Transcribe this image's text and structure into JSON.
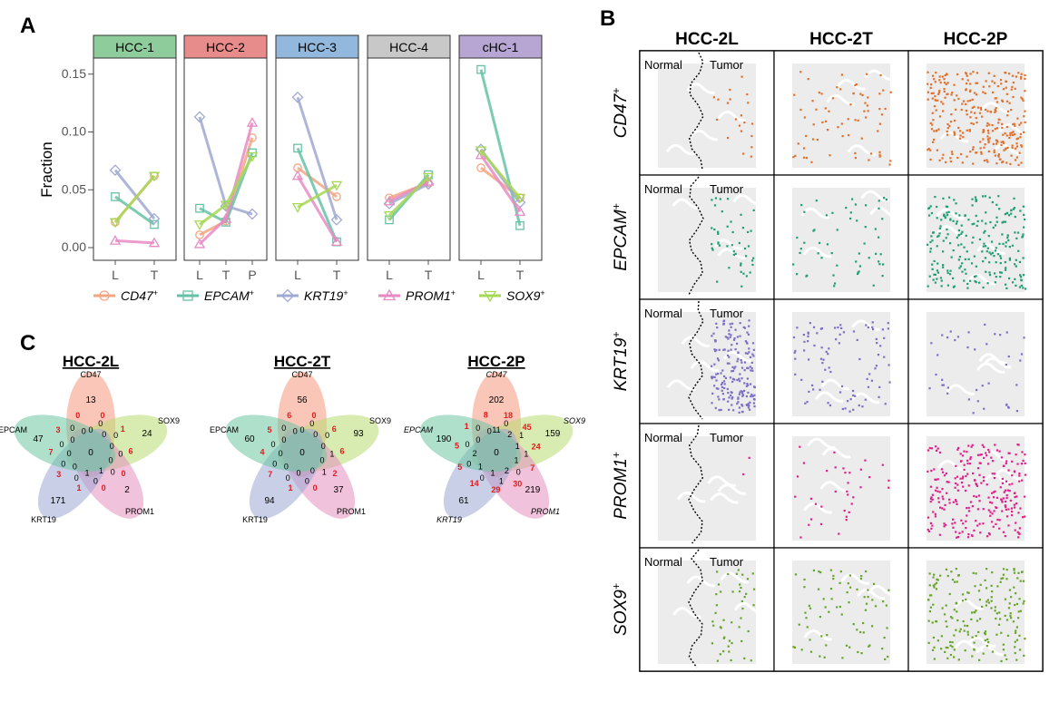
{
  "panel_a": {
    "letter": "A",
    "ylabel": "Fraction",
    "y_ticks": [
      "0.00",
      "0.05",
      "0.10",
      "0.15"
    ],
    "y_tick_values": [
      0,
      0.05,
      0.1,
      0.15
    ],
    "facets": [
      {
        "label": "HCC-1",
        "color": "#8fcc9c",
        "x": [
          "L",
          "T"
        ]
      },
      {
        "label": "HCC-2",
        "color": "#e88b8b",
        "x": [
          "L",
          "T",
          "P"
        ]
      },
      {
        "label": "HCC-3",
        "color": "#92b8de",
        "x": [
          "L",
          "T"
        ]
      },
      {
        "label": "HCC-4",
        "color": "#c8c8c8",
        "x": [
          "L",
          "T"
        ]
      },
      {
        "label": "cHC-1",
        "color": "#b7a6d4",
        "x": [
          "L",
          "T"
        ]
      }
    ],
    "legend": [
      {
        "name": "CD47",
        "sup": "+",
        "color": "#f4a582",
        "marker": "circle"
      },
      {
        "name": "EPCAM",
        "sup": "+",
        "color": "#66c2a5",
        "marker": "square"
      },
      {
        "name": "KRT19",
        "sup": "+",
        "color": "#9fa9d2",
        "marker": "diamond"
      },
      {
        "name": "PROM1",
        "sup": "+",
        "color": "#e78ac3",
        "marker": "triangle"
      },
      {
        "name": "SOX9",
        "sup": "+",
        "color": "#a6d854",
        "marker": "triangle-down"
      }
    ]
  },
  "chart_data": {
    "type": "line",
    "title": "",
    "xlabel": "",
    "ylabel": "Fraction",
    "ylim": [
      0,
      0.16
    ],
    "facets": [
      {
        "name": "HCC-1",
        "x": [
          "L",
          "T"
        ],
        "series": [
          {
            "name": "CD47+",
            "values": [
              0.022,
              0.062
            ]
          },
          {
            "name": "EPCAM+",
            "values": [
              0.044,
              0.02
            ]
          },
          {
            "name": "KRT19+",
            "values": [
              0.067,
              0.025
            ]
          },
          {
            "name": "PROM1+",
            "values": [
              0.006,
              0.004
            ]
          },
          {
            "name": "SOX9+",
            "values": [
              0.022,
              0.062
            ]
          }
        ]
      },
      {
        "name": "HCC-2",
        "x": [
          "L",
          "T",
          "P"
        ],
        "series": [
          {
            "name": "CD47+",
            "values": [
              0.011,
              0.023,
              0.095
            ]
          },
          {
            "name": "EPCAM+",
            "values": [
              0.034,
              0.022,
              0.082
            ]
          },
          {
            "name": "KRT19+",
            "values": [
              0.113,
              0.036,
              0.029
            ]
          },
          {
            "name": "PROM1+",
            "values": [
              0.003,
              0.025,
              0.108
            ]
          },
          {
            "name": "SOX9+",
            "values": [
              0.02,
              0.037,
              0.079
            ]
          }
        ]
      },
      {
        "name": "HCC-3",
        "x": [
          "L",
          "T"
        ],
        "series": [
          {
            "name": "CD47+",
            "values": [
              0.069,
              0.044
            ]
          },
          {
            "name": "EPCAM+",
            "values": [
              0.086,
              0.005
            ]
          },
          {
            "name": "KRT19+",
            "values": [
              0.13,
              0.024
            ]
          },
          {
            "name": "PROM1+",
            "values": [
              0.062,
              0.005
            ]
          },
          {
            "name": "SOX9+",
            "values": [
              0.035,
              0.054
            ]
          }
        ]
      },
      {
        "name": "HCC-4",
        "x": [
          "L",
          "T"
        ],
        "series": [
          {
            "name": "CD47+",
            "values": [
              0.043,
              0.056
            ]
          },
          {
            "name": "EPCAM+",
            "values": [
              0.024,
              0.063
            ]
          },
          {
            "name": "KRT19+",
            "values": [
              0.038,
              0.055
            ]
          },
          {
            "name": "PROM1+",
            "values": [
              0.04,
              0.057
            ]
          },
          {
            "name": "SOX9+",
            "values": [
              0.028,
              0.061
            ]
          }
        ]
      },
      {
        "name": "cHC-1",
        "x": [
          "L",
          "T"
        ],
        "series": [
          {
            "name": "CD47+",
            "values": [
              0.069,
              0.043
            ]
          },
          {
            "name": "EPCAM+",
            "values": [
              0.154,
              0.019
            ]
          },
          {
            "name": "KRT19+",
            "values": [
              0.085,
              0.039
            ]
          },
          {
            "name": "PROM1+",
            "values": [
              0.08,
              0.031
            ]
          },
          {
            "name": "SOX9+",
            "values": [
              0.084,
              0.043
            ]
          }
        ]
      }
    ]
  },
  "panel_b": {
    "letter": "B",
    "columns": [
      "HCC-2L",
      "HCC-2T",
      "HCC-2P"
    ],
    "rows": [
      {
        "name": "CD47",
        "sup": "+",
        "color": "#e3702a",
        "counts": [
          20,
          70,
          300
        ]
      },
      {
        "name": "EPCAM",
        "sup": "+",
        "color": "#1f9e74",
        "counts": [
          45,
          55,
          240
        ]
      },
      {
        "name": "KRT19",
        "sup": "+",
        "color": "#7b6fc6",
        "counts": [
          180,
          90,
          40
        ]
      },
      {
        "name": "PROM1",
        "sup": "+",
        "color": "#e0208a",
        "counts": [
          2,
          35,
          260
        ]
      },
      {
        "name": "SOX9",
        "sup": "+",
        "color": "#67a52a",
        "counts": [
          45,
          75,
          190
        ]
      }
    ],
    "normal_label": "Normal",
    "tumor_label": "Tumor"
  },
  "panel_c": {
    "letter": "C",
    "venns": [
      {
        "title": "HCC-2L",
        "labels_italic": false,
        "set_labels": [
          "CD47",
          "SOX9",
          "PROM1",
          "KRT19",
          "EPCAM"
        ],
        "unique": [
          "13",
          "24",
          "2",
          "171",
          "47"
        ],
        "center": "0",
        "black_numbers": [
          "0",
          "0",
          "0",
          "0",
          "0",
          "0",
          "0",
          "0",
          "1",
          "0",
          "1",
          "0",
          "0",
          "0",
          "0",
          "0",
          "0",
          "0",
          "0"
        ],
        "red_numbers": [
          "0",
          "1",
          "6",
          "0",
          "0",
          "1",
          "3",
          "7",
          "3",
          "0"
        ]
      },
      {
        "title": "HCC-2T",
        "labels_italic": false,
        "set_labels": [
          "CD47",
          "SOX9",
          "PROM1",
          "KRT19",
          "EPCAM"
        ],
        "unique": [
          "56",
          "93",
          "37",
          "94",
          "60"
        ],
        "center": "0",
        "black_numbers": [
          "0",
          "0",
          "0",
          "0",
          "0",
          "1",
          "0",
          "1",
          "0",
          "0",
          "0",
          "0",
          "0",
          "0",
          "0",
          "0",
          "0",
          "0",
          "0"
        ],
        "red_numbers": [
          "0",
          "6",
          "6",
          "2",
          "0",
          "1",
          "7",
          "4",
          "5",
          "6"
        ]
      },
      {
        "title": "HCC-2P",
        "labels_italic": true,
        "set_labels": [
          "CD47",
          "SOX9",
          "PROM1",
          "KRT19",
          "EPCAM"
        ],
        "unique": [
          "202",
          "159",
          "219",
          "61",
          "190"
        ],
        "center": "0",
        "black_numbers": [
          "11",
          "0",
          "2",
          "1",
          "1",
          "1",
          "1",
          "0",
          "2",
          "1",
          "1",
          "0",
          "1",
          "0",
          "2",
          "0",
          "0",
          "0",
          "0"
        ],
        "red_numbers": [
          "18",
          "45",
          "24",
          "7",
          "30",
          "29",
          "14",
          "5",
          "5",
          "1",
          "8"
        ]
      }
    ]
  }
}
